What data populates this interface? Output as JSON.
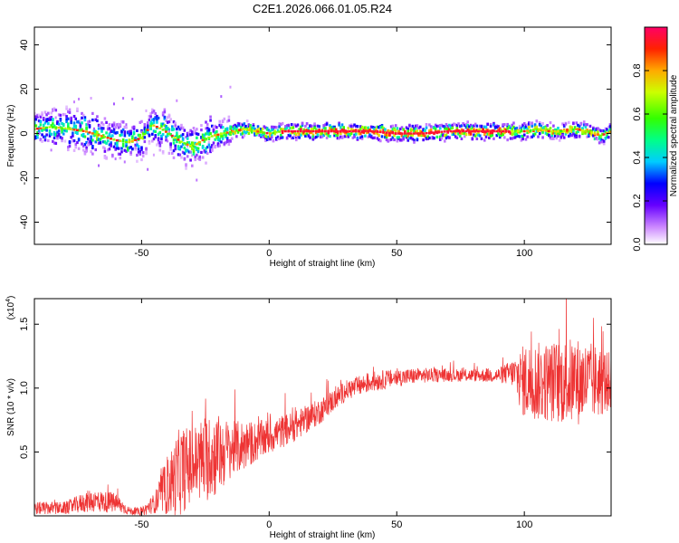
{
  "title": "C2E1.2026.066.01.05.R24",
  "chart_data": [
    {
      "type": "heatmap",
      "xlabel": "Height of straight line (km)",
      "ylabel": "Frequency (Hz)",
      "xlim": [
        -92,
        134
      ],
      "ylim": [
        -50,
        48
      ],
      "xticks": [
        -50,
        0,
        50,
        100
      ],
      "yticks": [
        -40,
        -20,
        0,
        20,
        40
      ],
      "colorbar": {
        "label": "Normalized spectral amplitude",
        "range": [
          0,
          1
        ],
        "ticks": [
          "0.0",
          "0.2",
          "0.4",
          "0.6",
          "0.8"
        ],
        "tick_values": [
          0.0,
          0.2,
          0.4,
          0.6,
          0.8
        ]
      },
      "ridge": {
        "comment_free_points_x": [
          -92,
          -85,
          -78,
          -72,
          -66,
          -60,
          -55,
          -50,
          -46,
          -42,
          -38,
          -34,
          -30,
          -26,
          -22,
          -18,
          -14,
          -10,
          -5,
          0,
          5,
          10,
          20,
          30,
          40,
          50,
          60,
          70,
          80,
          90,
          95,
          100,
          105,
          110,
          115,
          120,
          125,
          130,
          134
        ],
        "frequency_hz": [
          2,
          3,
          2,
          1,
          -1,
          -3,
          -4,
          -2,
          4,
          2,
          -1,
          -4,
          -6,
          -3,
          -1,
          0,
          1,
          2,
          1,
          0,
          1,
          1,
          1,
          1,
          1,
          0,
          0,
          1,
          1,
          1,
          1,
          1,
          2,
          1,
          1,
          2,
          1,
          -1,
          1
        ]
      }
    },
    {
      "type": "line",
      "xlabel": "Height of straight line (km)",
      "ylabel": "SNR (10 * v/v)",
      "y_multiplier_label": "(x10",
      "y_multiplier_exp": "4",
      "y_multiplier_close": ")",
      "xlim": [
        -92,
        134
      ],
      "ylim": [
        0,
        1.7
      ],
      "xticks": [
        -50,
        0,
        50,
        100
      ],
      "yticks": [
        "0.5",
        "1.0",
        "1.5"
      ],
      "ytick_values": [
        0.5,
        1.0,
        1.5
      ],
      "series_color": "#ee3333",
      "envelope_x": [
        -92,
        -80,
        -70,
        -60,
        -55,
        -50,
        -45,
        -40,
        -35,
        -30,
        -25,
        -20,
        -15,
        -10,
        -5,
        0,
        10,
        20,
        30,
        40,
        50,
        60,
        70,
        80,
        90,
        95,
        100,
        110,
        120,
        130,
        134
      ],
      "envelope_mean": [
        0.06,
        0.06,
        0.12,
        0.1,
        0.04,
        0.03,
        0.1,
        0.22,
        0.35,
        0.4,
        0.45,
        0.48,
        0.52,
        0.55,
        0.58,
        0.62,
        0.7,
        0.82,
        0.98,
        1.05,
        1.08,
        1.1,
        1.1,
        1.1,
        1.1,
        1.12,
        1.05,
        1.05,
        1.05,
        1.05,
        1.05
      ],
      "envelope_noise": [
        0.05,
        0.05,
        0.09,
        0.08,
        0.03,
        0.03,
        0.08,
        0.22,
        0.35,
        0.3,
        0.35,
        0.32,
        0.22,
        0.2,
        0.16,
        0.14,
        0.12,
        0.1,
        0.08,
        0.08,
        0.07,
        0.06,
        0.05,
        0.05,
        0.06,
        0.1,
        0.3,
        0.32,
        0.35,
        0.28,
        0.22
      ]
    }
  ]
}
